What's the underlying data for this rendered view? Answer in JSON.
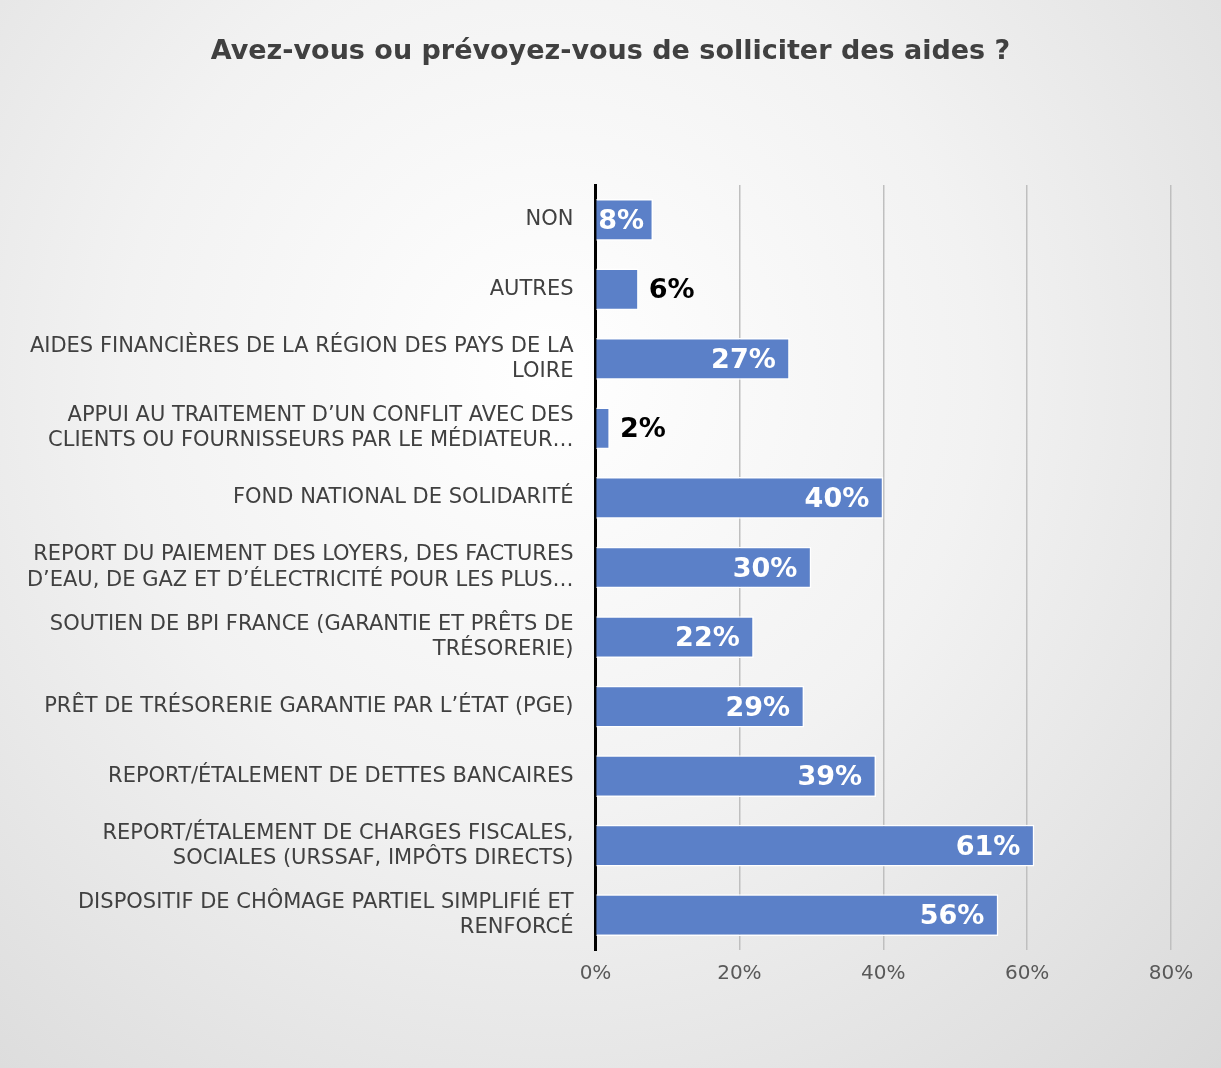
{
  "chart_data": {
    "type": "bar",
    "orientation": "horizontal",
    "title": "Avez-vous ou prévoyez-vous de solliciter des aides ?",
    "categories": [
      "NON",
      "AUTRES",
      "AIDES FINANCIÈRES DE LA RÉGION DES PAYS DE LA LOIRE",
      "APPUI AU TRAITEMENT D’UN CONFLIT AVEC DES CLIENTS OU FOURNISSEURS PAR LE MÉDIATEUR…",
      "FOND NATIONAL DE SOLIDARITÉ",
      "REPORT DU PAIEMENT DES LOYERS, DES FACTURES D’EAU, DE GAZ ET D’ÉLECTRICITÉ POUR LES PLUS…",
      "SOUTIEN DE BPI FRANCE (GARANTIE ET PRÊTS DE TRÉSORERIE)",
      "PRÊT DE TRÉSORERIE GARANTIE PAR L’ÉTAT (PGE)",
      "REPORT/ÉTALEMENT DE DETTES BANCAIRES",
      "REPORT/ÉTALEMENT DE CHARGES FISCALES, SOCIALES (URSSAF, IMPÔTS DIRECTS)",
      "DISPOSITIF DE CHÔMAGE PARTIEL SIMPLIFIÉ ET RENFORCÉ"
    ],
    "values": [
      8,
      6,
      27,
      2,
      40,
      30,
      22,
      29,
      39,
      61,
      56
    ],
    "value_labels": [
      "8%",
      "6%",
      "27%",
      "2%",
      "40%",
      "30%",
      "22%",
      "29%",
      "39%",
      "61%",
      "56%"
    ],
    "color": "#5b80c8",
    "xlim": [
      0,
      80
    ],
    "xticks": [
      {
        "value": 0,
        "label": "0%"
      },
      {
        "value": 20,
        "label": "20%"
      },
      {
        "value": 40,
        "label": "40%"
      },
      {
        "value": 60,
        "label": "60%"
      },
      {
        "value": 80,
        "label": "80%"
      }
    ],
    "grid": "x"
  }
}
